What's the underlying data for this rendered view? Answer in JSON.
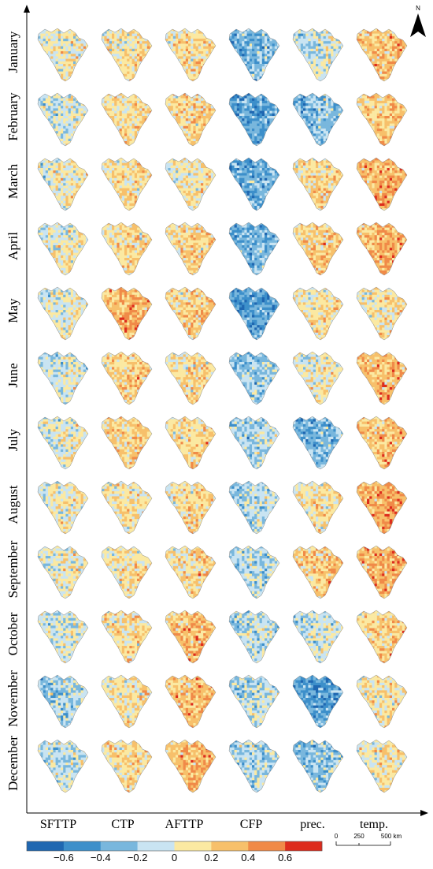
{
  "rows": [
    "January",
    "February",
    "March",
    "April",
    "May",
    "June",
    "July",
    "August",
    "September",
    "October",
    "November",
    "December"
  ],
  "columns": [
    "SFTTP",
    "CTP",
    "AFTTP",
    "CFP",
    "prec.",
    "temp."
  ],
  "legend": {
    "ticks": [
      "−0.6",
      "−0.4",
      "−0.2",
      "0",
      "0.2",
      "0.4",
      "0.6"
    ],
    "colors": [
      "#1f67b1",
      "#3d8fca",
      "#79b7dd",
      "#c9e4f2",
      "#fbe9a2",
      "#f7c06b",
      "#f08a48",
      "#dd2c1d"
    ]
  },
  "scale_bar": {
    "labels": [
      "0",
      "250",
      "500 km"
    ]
  },
  "north_arrow": {
    "label": "N"
  },
  "panel_bias": [
    [
      0.05,
      0.12,
      0.15,
      -0.3,
      -0.05,
      0.28
    ],
    [
      -0.05,
      0.15,
      0.18,
      -0.38,
      -0.25,
      0.25
    ],
    [
      0.05,
      0.15,
      0.1,
      -0.35,
      0.18,
      0.35
    ],
    [
      0.05,
      0.18,
      0.2,
      -0.3,
      0.22,
      0.35
    ],
    [
      0.02,
      0.35,
      0.22,
      -0.4,
      0.12,
      0.12
    ],
    [
      -0.05,
      0.22,
      0.15,
      -0.2,
      0.05,
      0.3
    ],
    [
      0.0,
      0.22,
      0.18,
      -0.15,
      -0.3,
      0.28
    ],
    [
      0.05,
      0.12,
      0.15,
      -0.12,
      0.1,
      0.38
    ],
    [
      0.02,
      0.12,
      0.18,
      -0.12,
      0.25,
      0.35
    ],
    [
      -0.05,
      0.15,
      0.3,
      -0.12,
      -0.05,
      0.22
    ],
    [
      -0.18,
      0.12,
      0.28,
      -0.12,
      -0.4,
      0.12
    ],
    [
      -0.08,
      0.15,
      0.32,
      -0.15,
      -0.25,
      0.1
    ]
  ]
}
